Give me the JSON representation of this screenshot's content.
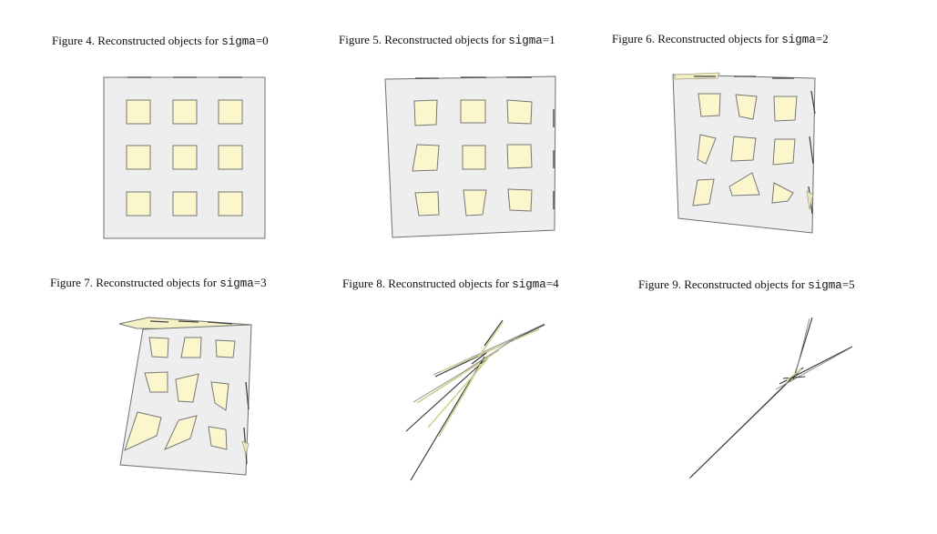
{
  "figures": [
    {
      "prefix": "Figure 4. Reconstructed objects for ",
      "code": "sigma",
      "suffix": "=0"
    },
    {
      "prefix": "Figure 5. Reconstructed objects for ",
      "code": "sigma",
      "suffix": "=1"
    },
    {
      "prefix": "Figure 6. Reconstructed objects for ",
      "code": "sigma",
      "suffix": "=2"
    },
    {
      "prefix": "Figure 7. Reconstructed objects for ",
      "code": "sigma",
      "suffix": "=3"
    },
    {
      "prefix": "Figure 8. Reconstructed objects for ",
      "code": "sigma",
      "suffix": "=4"
    },
    {
      "prefix": "Figure 9. Reconstructed objects for ",
      "code": "sigma",
      "suffix": "=5"
    }
  ],
  "colors": {
    "plate": "#eeeeee",
    "hole": "#fbf6cc",
    "outline": "#6f6f6f"
  }
}
